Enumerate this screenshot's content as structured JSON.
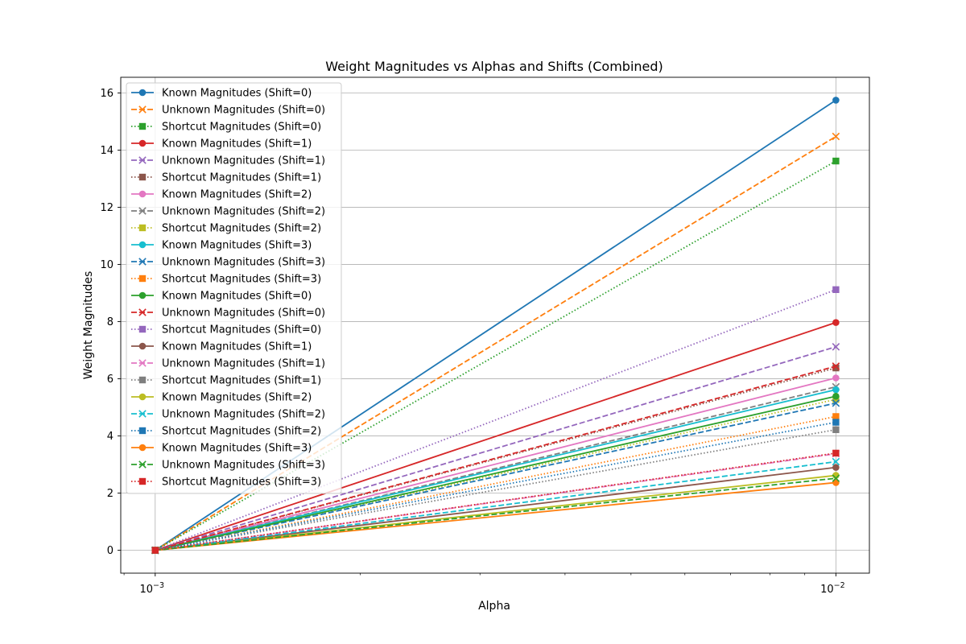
{
  "chart_data": {
    "type": "line",
    "title": "Weight Magnitudes vs Alphas and Shifts (Combined)",
    "xlabel": "Alpha",
    "ylabel": "Weight Magnitudes",
    "xscale": "log",
    "x": [
      0.001,
      0.01
    ],
    "x_tick_labels": [
      {
        "base": "10",
        "exp": "−3",
        "value": 0.001
      },
      {
        "base": "10",
        "exp": "−2",
        "value": 0.01
      }
    ],
    "y_ticks": [
      0,
      2,
      4,
      6,
      8,
      10,
      12,
      14,
      16
    ],
    "xlim": [
      0.00089,
      0.0112
    ],
    "ylim": [
      -0.8,
      16.55
    ],
    "grid": true,
    "legend_position": "upper-left",
    "series": [
      {
        "name": "Known Magnitudes (Shift=0)",
        "values": [
          0,
          15.75
        ],
        "color": "#1f77b4",
        "linestyle": "solid",
        "marker": "circle"
      },
      {
        "name": "Unknown Magnitudes (Shift=0)",
        "values": [
          0,
          14.48
        ],
        "color": "#ff7f0e",
        "linestyle": "dashed",
        "marker": "x"
      },
      {
        "name": "Shortcut Magnitudes (Shift=0)",
        "values": [
          0,
          13.62
        ],
        "color": "#2ca02c",
        "linestyle": "dotted",
        "marker": "square"
      },
      {
        "name": "Known Magnitudes (Shift=1)",
        "values": [
          0,
          7.97
        ],
        "color": "#d62728",
        "linestyle": "solid",
        "marker": "circle"
      },
      {
        "name": "Unknown Magnitudes (Shift=1)",
        "values": [
          0,
          7.12
        ],
        "color": "#9467bd",
        "linestyle": "dashed",
        "marker": "x"
      },
      {
        "name": "Shortcut Magnitudes (Shift=1)",
        "values": [
          0,
          6.38
        ],
        "color": "#8c564b",
        "linestyle": "dotted",
        "marker": "square"
      },
      {
        "name": "Known Magnitudes (Shift=2)",
        "values": [
          0,
          6.03
        ],
        "color": "#e377c2",
        "linestyle": "solid",
        "marker": "circle"
      },
      {
        "name": "Unknown Magnitudes (Shift=2)",
        "values": [
          0,
          5.72
        ],
        "color": "#7f7f7f",
        "linestyle": "dashed",
        "marker": "x"
      },
      {
        "name": "Shortcut Magnitudes (Shift=2)",
        "values": [
          0,
          5.28
        ],
        "color": "#bcbd22",
        "linestyle": "dotted",
        "marker": "square"
      },
      {
        "name": "Known Magnitudes (Shift=3)",
        "values": [
          0,
          5.62
        ],
        "color": "#17becf",
        "linestyle": "solid",
        "marker": "circle"
      },
      {
        "name": "Unknown Magnitudes (Shift=3)",
        "values": [
          0,
          5.15
        ],
        "color": "#1f77b4",
        "linestyle": "dashed",
        "marker": "x"
      },
      {
        "name": "Shortcut Magnitudes (Shift=3)",
        "values": [
          0,
          4.68
        ],
        "color": "#ff7f0e",
        "linestyle": "dotted",
        "marker": "square"
      },
      {
        "name": "Known Magnitudes (Shift=0)",
        "values": [
          0,
          5.39
        ],
        "color": "#2ca02c",
        "linestyle": "solid",
        "marker": "circle"
      },
      {
        "name": "Unknown Magnitudes (Shift=0)",
        "values": [
          0,
          6.44
        ],
        "color": "#d62728",
        "linestyle": "dashed",
        "marker": "x"
      },
      {
        "name": "Shortcut Magnitudes (Shift=0)",
        "values": [
          0,
          9.12
        ],
        "color": "#9467bd",
        "linestyle": "dotted",
        "marker": "square"
      },
      {
        "name": "Known Magnitudes (Shift=1)",
        "values": [
          0,
          2.9
        ],
        "color": "#8c564b",
        "linestyle": "solid",
        "marker": "circle"
      },
      {
        "name": "Unknown Magnitudes (Shift=1)",
        "values": [
          0,
          3.38
        ],
        "color": "#e377c2",
        "linestyle": "dashed",
        "marker": "x"
      },
      {
        "name": "Shortcut Magnitudes (Shift=1)",
        "values": [
          0,
          4.22
        ],
        "color": "#7f7f7f",
        "linestyle": "dotted",
        "marker": "square"
      },
      {
        "name": "Known Magnitudes (Shift=2)",
        "values": [
          0,
          2.62
        ],
        "color": "#bcbd22",
        "linestyle": "solid",
        "marker": "circle"
      },
      {
        "name": "Unknown Magnitudes (Shift=2)",
        "values": [
          0,
          3.1
        ],
        "color": "#17becf",
        "linestyle": "dashed",
        "marker": "x"
      },
      {
        "name": "Shortcut Magnitudes (Shift=2)",
        "values": [
          0,
          4.48
        ],
        "color": "#1f77b4",
        "linestyle": "dotted",
        "marker": "square"
      },
      {
        "name": "Known Magnitudes (Shift=3)",
        "values": [
          0,
          2.37
        ],
        "color": "#ff7f0e",
        "linestyle": "solid",
        "marker": "circle"
      },
      {
        "name": "Unknown Magnitudes (Shift=3)",
        "values": [
          0,
          2.52
        ],
        "color": "#2ca02c",
        "linestyle": "dashed",
        "marker": "x"
      },
      {
        "name": "Shortcut Magnitudes (Shift=3)",
        "values": [
          0,
          3.4
        ],
        "color": "#d62728",
        "linestyle": "dotted",
        "marker": "square"
      }
    ]
  }
}
